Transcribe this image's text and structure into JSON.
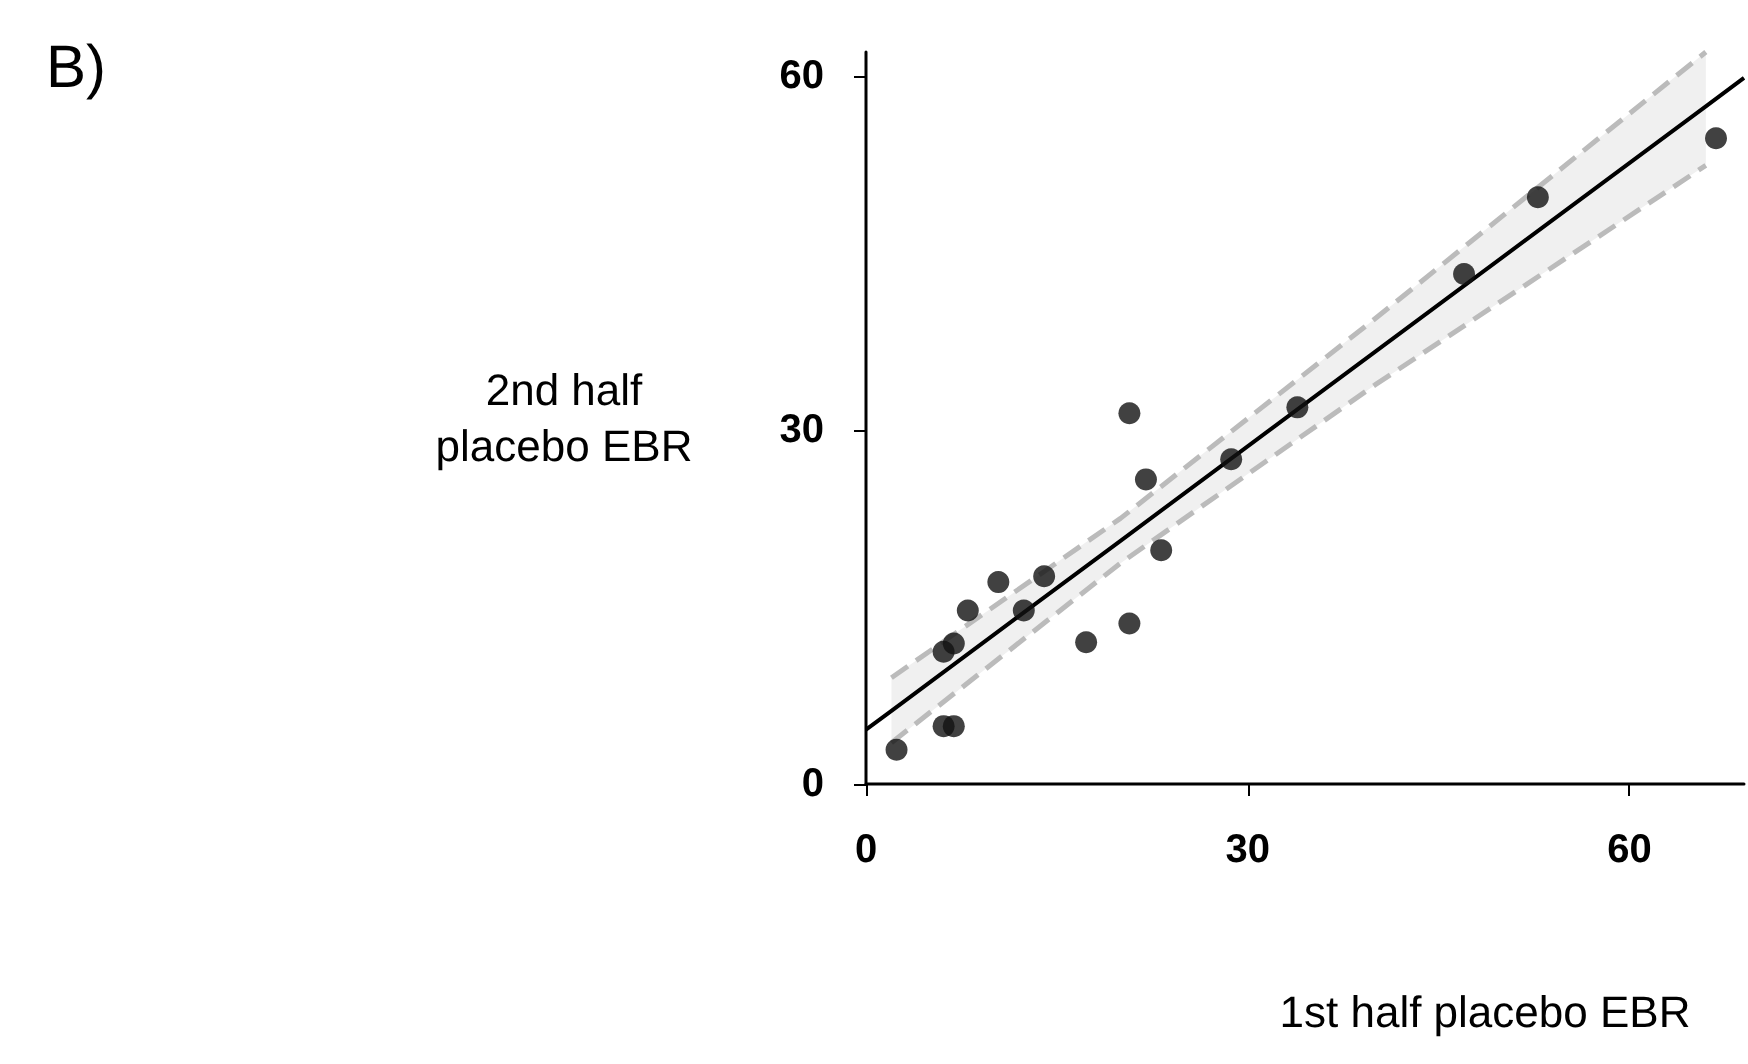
{
  "chart_data": {
    "type": "scatter",
    "title": "B)",
    "xlabel": "1st half placebo EBR",
    "ylabel": "2nd half\nplacebo EBR",
    "xlim": [
      0,
      69
    ],
    "ylim": [
      0,
      62
    ],
    "xticks": [
      0,
      30,
      60
    ],
    "yticks": [
      0,
      30,
      60
    ],
    "grid": false,
    "marker": "circle",
    "series": [
      {
        "color": "#111111",
        "x": [
          2.4,
          6.1,
          6.9,
          6.1,
          6.9,
          8.0,
          10.4,
          12.4,
          14.0,
          17.3,
          20.7,
          20.7,
          22.0,
          23.2,
          28.7,
          33.9,
          47.0,
          52.8,
          66.8
        ],
        "values": [
          2.9,
          4.9,
          4.9,
          11.2,
          11.9,
          14.7,
          17.1,
          14.7,
          17.6,
          12.0,
          13.6,
          31.4,
          25.8,
          19.8,
          27.5,
          31.9,
          43.2,
          49.7,
          54.7
        ]
      },
      {
        "type": "line",
        "color": "#000000",
        "line_style": "solid",
        "marker": "none",
        "x": [
          0,
          2,
          20,
          40,
          66,
          69
        ],
        "values": [
          4.6,
          6.2,
          20.6,
          36.6,
          57.4,
          59.8
        ],
        "lower": [
          null,
          3.5,
          18.7,
          33.8,
          52.4,
          null
        ],
        "upper": [
          null,
          9.0,
          22.5,
          39.4,
          62,
          null
        ]
      },
      {
        "type": "line",
        "color": "#bbbbbb",
        "line_style": "dashed",
        "marker": "none",
        "x": [
          2,
          20,
          40,
          66
        ],
        "values": [
          3.5,
          18.7,
          33.8,
          52.4
        ]
      },
      {
        "type": "line",
        "color": "#bbbbbb",
        "line_style": "dashed",
        "marker": "none",
        "x": [
          2,
          20,
          40,
          66
        ],
        "values": [
          9.0,
          22.5,
          39.4,
          62
        ]
      }
    ]
  }
}
